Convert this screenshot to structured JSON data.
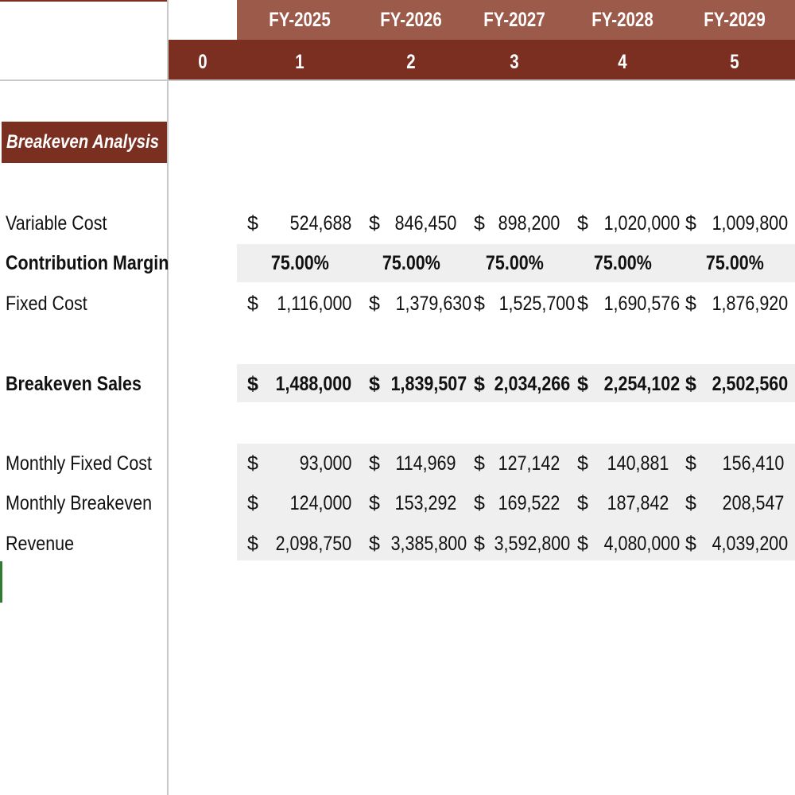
{
  "header": {
    "years": [
      "FY-2025",
      "FY-2026",
      "FY-2027",
      "FY-2028",
      "FY-2029"
    ],
    "periods": [
      "0",
      "1",
      "2",
      "3",
      "4",
      "5"
    ]
  },
  "section": {
    "title": "Breakeven Analysis"
  },
  "rows": [
    {
      "label": "Variable Cost",
      "currency": "$",
      "values": [
        "524,688",
        "846,450",
        "898,200",
        "1,020,000",
        "1,009,800"
      ]
    },
    {
      "label": "Contribution Margin",
      "values": [
        "75.00%",
        "75.00%",
        "75.00%",
        "75.00%",
        "75.00%"
      ]
    },
    {
      "label": "Fixed Cost",
      "currency": "$",
      "values": [
        "1,116,000",
        "1,379,630",
        "1,525,700",
        "1,690,576",
        "1,876,920"
      ]
    },
    {
      "label": "Breakeven Sales",
      "currency": "$",
      "values": [
        "1,488,000",
        "1,839,507",
        "2,034,266",
        "2,254,102",
        "2,502,560"
      ]
    },
    {
      "label": "Monthly Fixed Cost",
      "currency": "$",
      "values": [
        "93,000",
        "114,969",
        "127,142",
        "140,881",
        "156,410"
      ]
    },
    {
      "label": "Monthly Breakeven",
      "currency": "$",
      "values": [
        "124,000",
        "153,292",
        "169,522",
        "187,842",
        "208,547"
      ]
    },
    {
      "label": "Revenue",
      "currency": "$",
      "values": [
        "2,098,750",
        "3,385,800",
        "3,592,800",
        "4,080,000",
        "4,039,200"
      ]
    }
  ],
  "colors": {
    "header_dark": "#7b2f20",
    "header_light": "#9c5a4b",
    "row_shade": "#efefef"
  }
}
